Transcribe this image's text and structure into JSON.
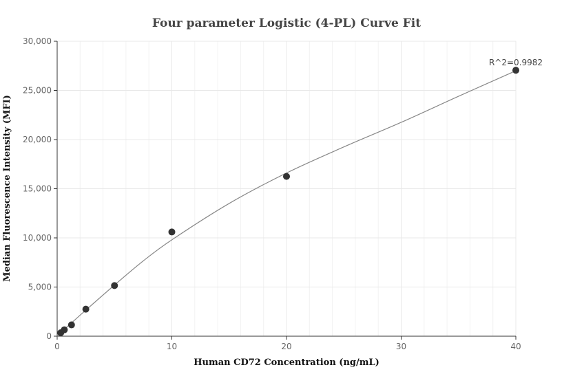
{
  "chart_data": {
    "type": "scatter",
    "title": "Four parameter Logistic (4-PL) Curve Fit",
    "xlabel": "Human CD72 Concentration (ng/mL)",
    "ylabel": "Median Fluorescence Intensity (MFI)",
    "xlim": [
      0,
      40
    ],
    "ylim": [
      0,
      30000
    ],
    "x_ticks": [
      0,
      10,
      20,
      30,
      40
    ],
    "x_tick_labels": [
      "0",
      "10",
      "20",
      "30",
      "40"
    ],
    "y_ticks": [
      0,
      5000,
      10000,
      15000,
      20000,
      25000,
      30000
    ],
    "y_tick_labels": [
      "0",
      "5,000",
      "10,000",
      "15,000",
      "20,000",
      "25,000",
      "30,000"
    ],
    "grid": true,
    "points": {
      "x": [
        0.3125,
        0.625,
        1.25,
        2.5,
        5,
        10,
        20,
        40
      ],
      "y": [
        350,
        650,
        1150,
        2750,
        5150,
        10600,
        16250,
        27050
      ]
    },
    "fit_curve": {
      "model": "4PL",
      "x": [
        0,
        0.3125,
        0.625,
        1.25,
        2.5,
        5,
        7.5,
        10,
        15,
        20,
        25,
        30,
        35,
        40
      ],
      "y": [
        0,
        380,
        700,
        1350,
        2650,
        5200,
        7650,
        9800,
        13500,
        16600,
        19250,
        21750,
        24400,
        27000
      ]
    },
    "annotation": "R^2=0.9982",
    "colors": {
      "points": "#333333",
      "curve": "#888888",
      "grid": "#e8e8e8"
    }
  }
}
